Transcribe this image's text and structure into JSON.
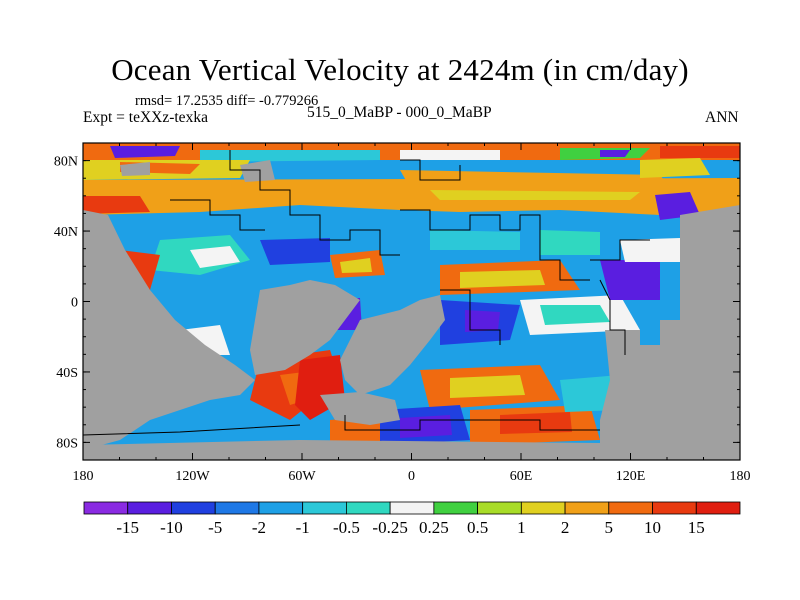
{
  "title": "Ocean Vertical Velocity at 2424m (in cm/day)",
  "stats": "rmsd= 17.2535 diff= -0.779266",
  "experiment": "Expt = teXXz-texka",
  "case": "515_0_MaBP - 000_0_MaBP",
  "season": "ANN",
  "map": {
    "lat_labels": [
      "80N",
      "40N",
      "0",
      "40S",
      "80S"
    ],
    "lat_values": [
      80,
      40,
      0,
      -40,
      -80
    ],
    "lon_labels": [
      "180",
      "120W",
      "60W",
      "0",
      "60E",
      "120E",
      "180"
    ],
    "lon_values": [
      -180,
      -120,
      -60,
      0,
      60,
      120,
      180
    ],
    "land_color": "#a0a0a0"
  },
  "colorbar": {
    "labels": [
      "-15",
      "-10",
      "-5",
      "-2",
      "-1",
      "-0.5",
      "-0.25",
      "0.25",
      "0.5",
      "1",
      "2",
      "5",
      "10",
      "15"
    ],
    "colors": [
      "#8a2be2",
      "#5a1ee0",
      "#2040e0",
      "#1e78e6",
      "#1ea0e6",
      "#2cc8d8",
      "#30d8c0",
      "#f4f4f4",
      "#40d040",
      "#a8dc28",
      "#e0d020",
      "#f0a018",
      "#f06a10",
      "#e83a10",
      "#e01e10"
    ]
  }
}
